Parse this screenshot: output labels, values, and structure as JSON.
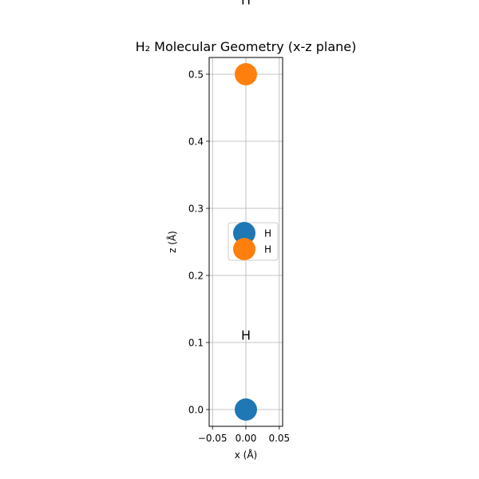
{
  "chart_data": {
    "type": "scatter",
    "title": "H₂ Molecular Geometry (x-z plane)",
    "xlabel": "x (Å)",
    "ylabel": "z (Å)",
    "xlim": [
      -0.055,
      0.055
    ],
    "ylim": [
      -0.025,
      0.525
    ],
    "xticks": [
      -0.05,
      0.0,
      0.05
    ],
    "xtick_labels": [
      "−0.05",
      "0.00",
      "0.05"
    ],
    "yticks": [
      0.0,
      0.1,
      0.2,
      0.3,
      0.4,
      0.5
    ],
    "ytick_labels": [
      "0.0",
      "0.1",
      "0.2",
      "0.3",
      "0.4",
      "0.5"
    ],
    "grid": true,
    "legend_position": "center-right",
    "series": [
      {
        "name": "H",
        "color": "#1f77b4",
        "points": [
          {
            "x": 0.0,
            "z": 0.0
          }
        ]
      },
      {
        "name": "H",
        "color": "#ff7f0e",
        "points": [
          {
            "x": 0.0,
            "z": 0.5
          }
        ]
      }
    ],
    "annotations": [
      {
        "text": "H",
        "x": 0.0,
        "z": 0.11
      },
      {
        "text": "H",
        "x": 0.0,
        "z": 0.61
      }
    ]
  }
}
